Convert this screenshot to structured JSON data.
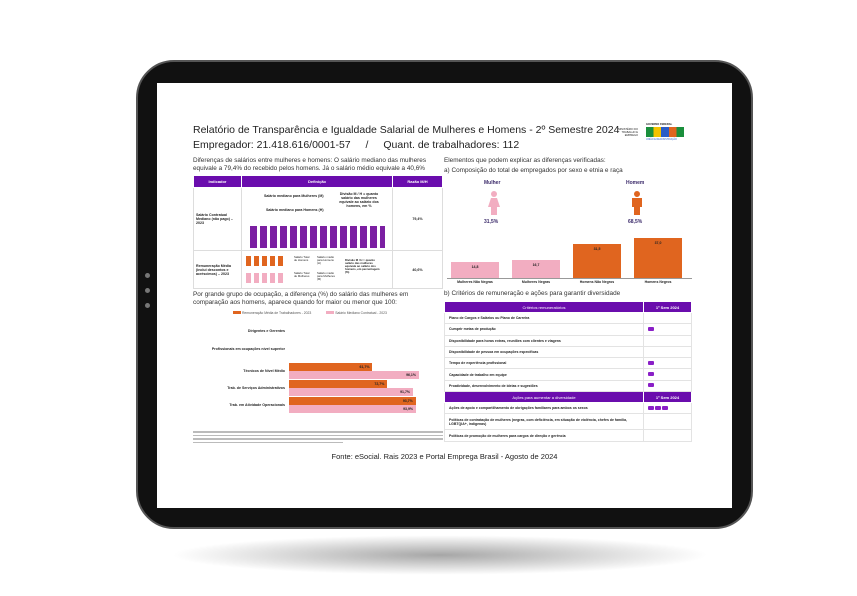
{
  "report": {
    "title": "Relatório de Transparência e Igualdade Salarial de Mulheres e Homens - 2º Semestre 2024",
    "employer": "Empregador: 21.418.616/0001-57",
    "separator": "/",
    "workers": "Quant. de trabalhadores: 112",
    "logo_ministry": "MINISTÉRIO DO TRABALHO E EMPREGO",
    "logo_gov": "GOVERNO FEDERAL",
    "logo_brasil": "BRASIL",
    "logo_tagline": "UNIÃO E RECONSTRUÇÃO",
    "intro": "Diferenças de salários entre mulheres e homens: O salário mediano das mulheres equivale a 79,4% do recebido pelos homens. Já o salário médio equivale a 40,6%",
    "table": {
      "headers": [
        "Indicador",
        "Definição",
        "Razão M/H"
      ],
      "rows": [
        {
          "indicator": "Salário Contratual Mediano (não pago) – 2023",
          "def1": "Salário mediano para Mulheres (M)",
          "def2": "Salário mediano para Homens (H)",
          "note": "Divisão M / H = quanto salário das mulheres equivale ao salário dos homens, em %",
          "ratio": "79,4%"
        },
        {
          "indicator": "Remuneração Média (inclui descontos e acréscimos) – 2023",
          "t1": "Salário Total de Homens",
          "r1": "Salário médio para Homens (H)",
          "t2": "Salário Total de Mulheres",
          "r2": "Salário médio para Mulheres (M)",
          "note": "Divisão M / H = quanto salário das mulheres equivale ao salário dos homens, em percentagem (%)",
          "ratio": "40,6%"
        }
      ]
    },
    "elements_title": "Elementos que podem explicar as diferenças verificadas:",
    "composition_title": "a) Composição do total de empregados por sexo e etnia e raça",
    "woman_label": "Mulher",
    "woman_pct": "31,5%",
    "man_label": "Homem",
    "man_pct": "68,5%",
    "occupation_title": "Por grande grupo de ocupação, a diferença (%) do salário das mulheres em comparação aos homens, aparece quando for maior ou menor que 100:",
    "criteria_title": "b) Critérios de remuneração e ações para garantir diversidade",
    "criteria": {
      "header": "Critérios remuneratórios",
      "period": "1º Sem 2024",
      "rows": [
        {
          "label": "Plano de Cargos e Salários ou Plano de Carreira",
          "marks": 0
        },
        {
          "label": "Cumprir metas de produção",
          "marks": 1
        },
        {
          "label": "Disponibilidade para horas extras, reuniões com clientes e viagens",
          "marks": 0
        },
        {
          "label": "Disponibilidade de pessoa em ocupações específicas",
          "marks": 0
        },
        {
          "label": "Tempo de experiência profissional",
          "marks": 1
        },
        {
          "label": "Capacidade de trabalho em equipe",
          "marks": 1
        },
        {
          "label": "Proatividade, desenvolvimento de ideias e sugestões",
          "marks": 1
        }
      ]
    },
    "actions": {
      "header": "Ações para aumentar a diversidade",
      "period": "1º Sem 2024",
      "rows": [
        {
          "label": "Ações de apoio e compartilhamento de obrigações familiares para ambos os sexos",
          "marks": 3
        },
        {
          "label": "Políticas de contratação de mulheres (negras, com deficiência, em situação de violência, chefes de família, LGBTQIA+, indígenas)",
          "marks": 0
        },
        {
          "label": "Políticas de promoção de mulheres para cargos de direção e gerência",
          "marks": 0
        }
      ]
    },
    "source": "Fonte: eSocial. Rais 2023 e Portal Emprega Brasil - Agosto de 2024"
  },
  "colors": {
    "purple": "#6a0dad",
    "orange": "#e0651f",
    "pink": "#f2adc1"
  },
  "chart_data": [
    {
      "type": "bar",
      "categories": [
        "Mulheres Não Negras",
        "Mulheres Negras",
        "Homens Não Negros",
        "Homens Negros"
      ],
      "values": [
        14.8,
        16.7,
        31.5,
        37.0
      ],
      "labels": [
        "14,8",
        "16,7",
        "31,5",
        "37,0"
      ],
      "colors": [
        "#f2adc1",
        "#f2adc1",
        "#e0651f",
        "#e0651f"
      ]
    },
    {
      "type": "bar",
      "orientation": "horizontal",
      "legend_placement": "top",
      "categories": [
        "Dirigentes e Gerentes",
        "Profissionais em ocupações nível superior",
        "Técnicos de Nível Médio",
        "Trab. de Serviços Administrativos",
        "Trab. em Atividade Operacionais"
      ],
      "series": [
        {
          "name": "Remuneração Média de Trabalhadores - 2023",
          "color": "#e0651f",
          "values": [
            null,
            null,
            61.7,
            72.7,
            93.7
          ],
          "labels": [
            "",
            "",
            "61,7%",
            "72,7%",
            "93,7%"
          ]
        },
        {
          "name": "Salário Mediano Contratual - 2023",
          "color": "#f2adc1",
          "values": [
            null,
            null,
            96.1,
            91.7,
            93.9
          ],
          "labels": [
            "",
            "",
            "96,1%",
            "91,7%",
            "93,9%"
          ]
        }
      ]
    }
  ]
}
